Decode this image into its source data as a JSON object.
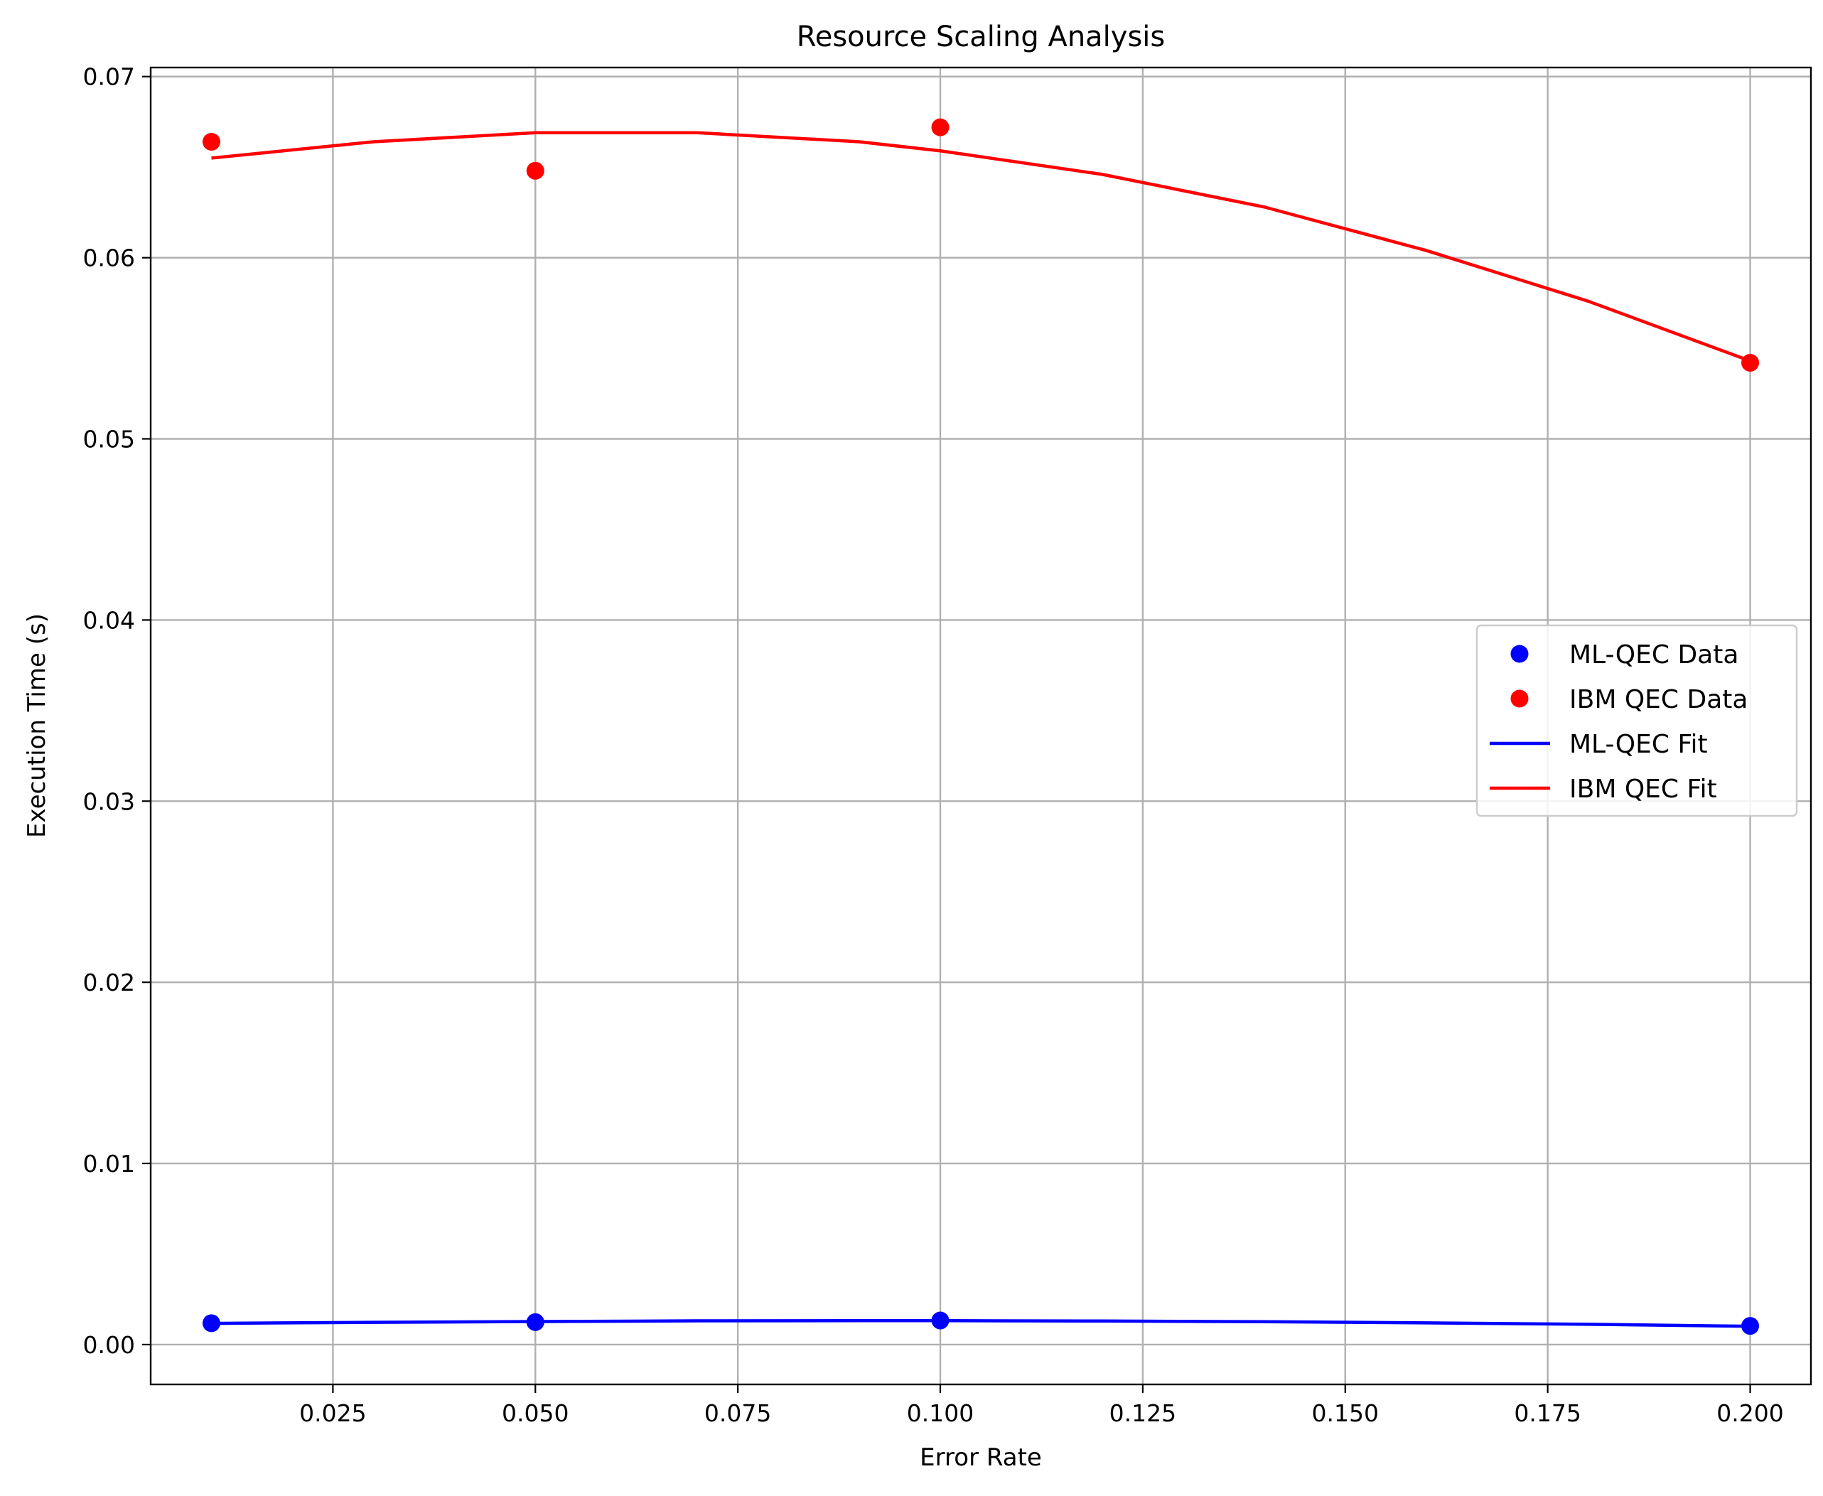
{
  "chart_data": {
    "type": "scatter",
    "title": "Resource Scaling Analysis",
    "xlabel": "Error Rate",
    "ylabel": "Execution Time (s)",
    "xlim": [
      0.0025,
      0.2075
    ],
    "ylim": [
      -0.0022,
      0.0705
    ],
    "xticks": [
      0.025,
      0.05,
      0.075,
      0.1,
      0.125,
      0.15,
      0.175,
      0.2
    ],
    "xtick_labels": [
      "0.025",
      "0.050",
      "0.075",
      "0.100",
      "0.125",
      "0.150",
      "0.175",
      "0.200"
    ],
    "yticks": [
      0.0,
      0.01,
      0.02,
      0.03,
      0.04,
      0.05,
      0.06,
      0.07
    ],
    "ytick_labels": [
      "0.00",
      "0.01",
      "0.02",
      "0.03",
      "0.04",
      "0.05",
      "0.06",
      "0.07"
    ],
    "grid": true,
    "legend_position": "center-right",
    "series": [
      {
        "name": "ML-QEC Data",
        "kind": "points",
        "color": "#0000ff",
        "x": [
          0.01,
          0.05,
          0.1,
          0.2
        ],
        "y": [
          0.00118,
          0.00124,
          0.00133,
          0.00103
        ]
      },
      {
        "name": "IBM QEC Data",
        "kind": "points",
        "color": "#ff0000",
        "x": [
          0.01,
          0.05,
          0.1,
          0.2
        ],
        "y": [
          0.0664,
          0.0648,
          0.0672,
          0.0542
        ]
      },
      {
        "name": "ML-QEC Fit",
        "kind": "line",
        "color": "#0000ff",
        "x": [
          0.01,
          0.03,
          0.05,
          0.07,
          0.09,
          0.1,
          0.12,
          0.14,
          0.16,
          0.18,
          0.2
        ],
        "y": [
          0.00117,
          0.00123,
          0.00127,
          0.00131,
          0.00132,
          0.00132,
          0.0013,
          0.00126,
          0.0012,
          0.00112,
          0.00101
        ]
      },
      {
        "name": "IBM QEC Fit",
        "kind": "line",
        "color": "#ff0000",
        "x": [
          0.01,
          0.03,
          0.05,
          0.07,
          0.09,
          0.1,
          0.12,
          0.14,
          0.16,
          0.18,
          0.2
        ],
        "y": [
          0.0655,
          0.0664,
          0.0669,
          0.0669,
          0.0664,
          0.0659,
          0.0646,
          0.0628,
          0.0604,
          0.0576,
          0.0543
        ]
      }
    ]
  }
}
